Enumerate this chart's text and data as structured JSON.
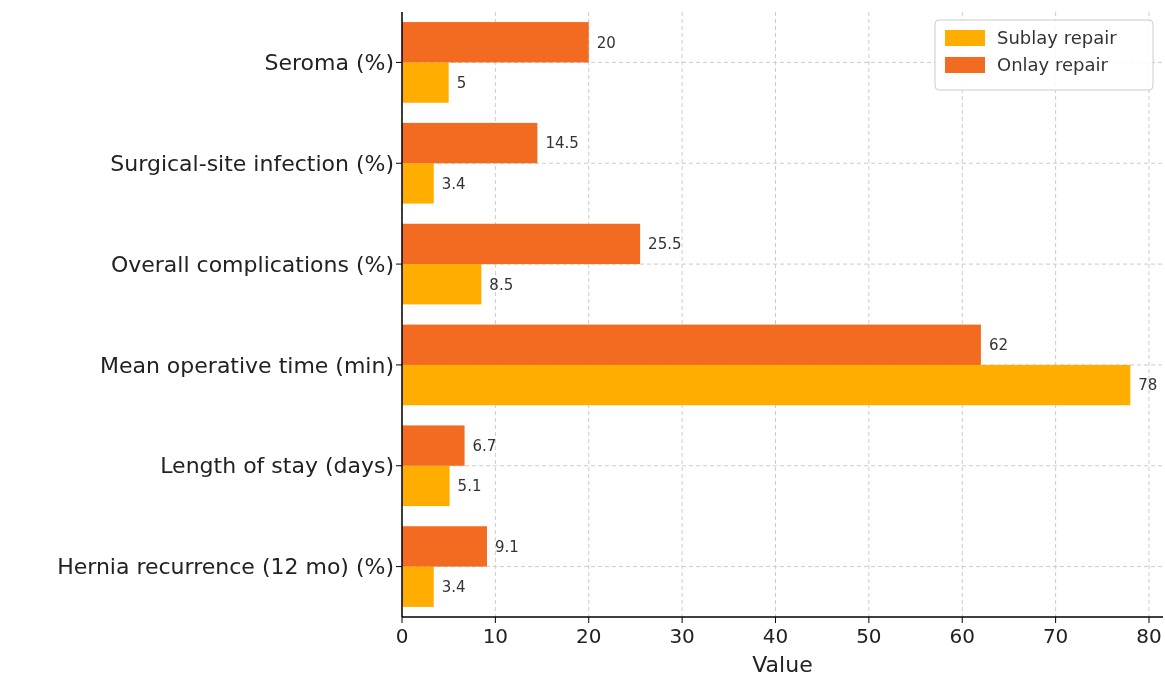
{
  "chart_data": {
    "type": "bar",
    "orientation": "horizontal",
    "xlabel": "Value",
    "categories": [
      "Seroma (%)",
      "Surgical-site infection (%)",
      "Overall complications (%)",
      "Mean operative time (min)",
      "Length of stay (days)",
      "Hernia recurrence (12 mo) (%)"
    ],
    "series": [
      {
        "name": "Sublay repair",
        "color": "#ffae00",
        "values": [
          5,
          3.4,
          8.5,
          78,
          5.1,
          3.4
        ]
      },
      {
        "name": "Onlay repair",
        "color": "#f26b21",
        "values": [
          20,
          14.5,
          25.5,
          62,
          6.7,
          9.1
        ]
      }
    ],
    "xlim": [
      0,
      81.5
    ],
    "xticks": [
      0,
      10,
      20,
      30,
      40,
      50,
      60,
      70,
      80
    ],
    "grid": true,
    "legend": "top right",
    "data_labels": true
  }
}
